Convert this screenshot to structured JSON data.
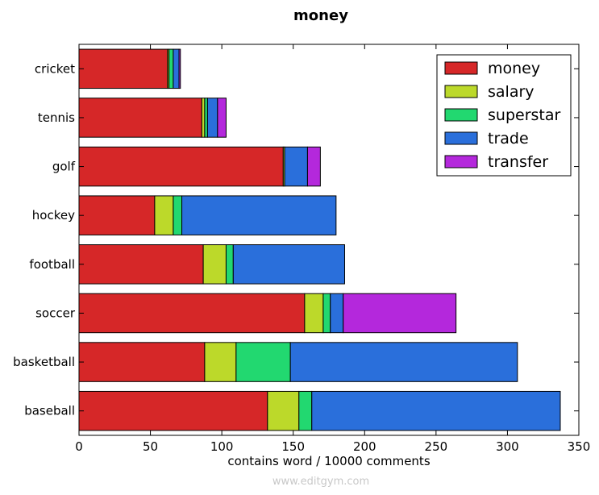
{
  "chart_data": {
    "type": "bar",
    "orientation": "horizontal",
    "stacked": true,
    "title": "money",
    "xlabel": "contains word / 10000 comments",
    "ylabel": "",
    "xlim": [
      0,
      350
    ],
    "xticks": [
      0,
      50,
      100,
      150,
      200,
      250,
      300,
      350
    ],
    "grid": false,
    "legend_position": "top-right",
    "categories": [
      "baseball",
      "basketball",
      "soccer",
      "football",
      "hockey",
      "golf",
      "tennis",
      "cricket"
    ],
    "series": [
      {
        "name": "money",
        "color": "#d62728",
        "values": [
          132,
          88,
          158,
          87,
          53,
          143,
          86,
          62
        ]
      },
      {
        "name": "salary",
        "color": "#bcd92a",
        "values": [
          22,
          22,
          13,
          16,
          13,
          1,
          2,
          1
        ]
      },
      {
        "name": "superstar",
        "color": "#22d870",
        "values": [
          9,
          38,
          5,
          5,
          6,
          0,
          2,
          3
        ]
      },
      {
        "name": "trade",
        "color": "#2a6fdb",
        "values": [
          174,
          159,
          9,
          78,
          108,
          16,
          7,
          4
        ]
      },
      {
        "name": "transfer",
        "color": "#b428dc",
        "values": [
          0,
          0,
          79,
          0,
          0,
          9,
          6,
          1
        ]
      }
    ]
  },
  "footer": {
    "credit": "www.editgym.com"
  }
}
